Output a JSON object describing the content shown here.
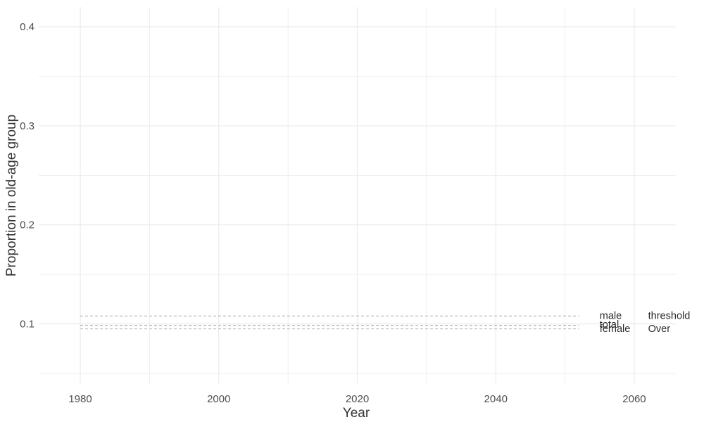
{
  "chart_data": {
    "type": "line",
    "title": "",
    "xlabel": "Year",
    "ylabel": "Proportion in old-age group",
    "xlim": [
      1974,
      2066
    ],
    "ylim": [
      0.04,
      0.42
    ],
    "x_ticks": [
      1980,
      2000,
      2020,
      2040,
      2060
    ],
    "x_tick_labels": [
      "1980",
      "2000",
      "2020",
      "2040",
      "2060"
    ],
    "y_ticks": [
      0.1,
      0.2,
      0.3,
      0.4
    ],
    "y_tick_labels": [
      "0.1",
      "0.2",
      "0.3",
      "0.4"
    ],
    "x_minor_ticks": [
      1990,
      2010,
      2030,
      2050
    ],
    "y_minor_ticks": [
      0.05,
      0.15,
      0.25,
      0.35
    ],
    "grid": true,
    "legend": "none",
    "colors": {
      "background": "#ffffff",
      "grid": "#ebebeb",
      "threshold_line": "#aaaaaa"
    },
    "series": [
      {
        "name": "male",
        "x": [
          1980,
          2052
        ],
        "y": [
          0.108,
          0.108
        ]
      },
      {
        "name": "total",
        "x": [
          1980,
          2052
        ],
        "y": [
          0.0985,
          0.0985
        ]
      },
      {
        "name": "female",
        "x": [
          1980,
          2052
        ],
        "y": [
          0.095,
          0.095
        ]
      }
    ],
    "annotations": [
      {
        "text": "male",
        "x": 2055,
        "y": 0.1085
      },
      {
        "text": "total",
        "x": 2055,
        "y": 0.0995
      },
      {
        "text": "female",
        "x": 2055,
        "y": 0.0955
      },
      {
        "text": "threshold",
        "x": 2062,
        "y": 0.1085
      },
      {
        "text": "Over",
        "x": 2062,
        "y": 0.0955
      }
    ]
  }
}
